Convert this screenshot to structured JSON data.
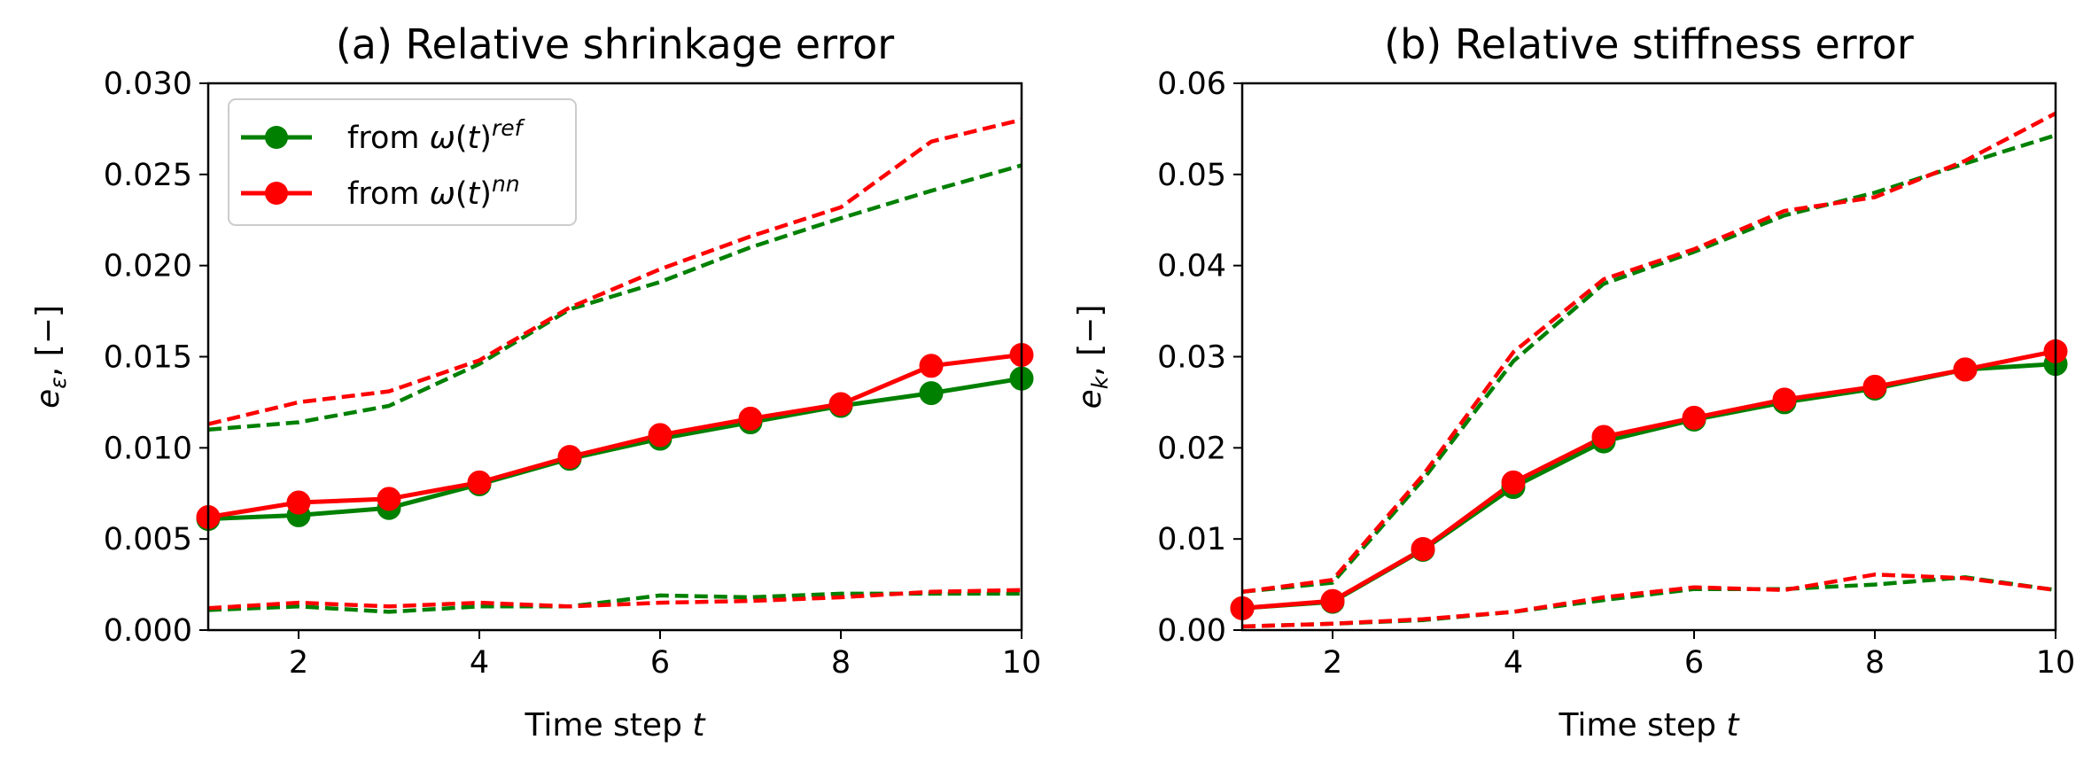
{
  "chart_data": [
    {
      "type": "line",
      "title": "(a) Relative shrinkage error",
      "xlabel": "Time step t",
      "ylabel": "e_ε, [−]",
      "xlim": [
        1,
        10
      ],
      "ylim": [
        0,
        0.03
      ],
      "xticks": [
        2,
        4,
        6,
        8,
        10
      ],
      "yticks": [
        0.0,
        0.005,
        0.01,
        0.015,
        0.02,
        0.025,
        0.03
      ],
      "ytick_labels": [
        "0.000",
        "0.005",
        "0.010",
        "0.015",
        "0.020",
        "0.025",
        "0.030"
      ],
      "grid": false,
      "legend_position": "top-left",
      "x": [
        1,
        2,
        3,
        4,
        5,
        6,
        7,
        8,
        9,
        10
      ],
      "series": [
        {
          "name": "from ω(t)^ref",
          "color": "#008000",
          "style": "solid-marker",
          "values": [
            0.0061,
            0.0063,
            0.0067,
            0.008,
            0.0094,
            0.0105,
            0.0114,
            0.0123,
            0.013,
            0.0138
          ]
        },
        {
          "color": "#008000",
          "style": "dashed",
          "values": [
            0.011,
            0.0114,
            0.0123,
            0.0146,
            0.0176,
            0.0191,
            0.021,
            0.0226,
            0.0241,
            0.0255
          ]
        },
        {
          "color": "#008000",
          "style": "dashed",
          "values": [
            0.0011,
            0.0013,
            0.001,
            0.0013,
            0.0013,
            0.0019,
            0.0018,
            0.002,
            0.002,
            0.002
          ]
        },
        {
          "name": "from ω(t)^nn",
          "color": "#ff0000",
          "style": "solid-marker",
          "values": [
            0.0062,
            0.007,
            0.0072,
            0.0081,
            0.0095,
            0.0107,
            0.0116,
            0.0124,
            0.0145,
            0.0151
          ]
        },
        {
          "color": "#ff0000",
          "style": "dashed",
          "values": [
            0.0113,
            0.0125,
            0.0131,
            0.0148,
            0.0177,
            0.0198,
            0.0216,
            0.0232,
            0.0268,
            0.028
          ]
        },
        {
          "color": "#ff0000",
          "style": "dashed",
          "values": [
            0.0012,
            0.0015,
            0.0013,
            0.0015,
            0.0013,
            0.0015,
            0.0016,
            0.0018,
            0.0021,
            0.0022
          ]
        }
      ],
      "legend": [
        {
          "label": "from ω(t)",
          "sup": "ref",
          "color": "#008000"
        },
        {
          "label": "from ω(t)",
          "sup": "nn",
          "color": "#ff0000"
        }
      ]
    },
    {
      "type": "line",
      "title": "(b) Relative stiffness error",
      "xlabel": "Time step t",
      "ylabel": "e_k, [−]",
      "xlim": [
        1,
        10
      ],
      "ylim": [
        0,
        0.06
      ],
      "xticks": [
        2,
        4,
        6,
        8,
        10
      ],
      "yticks": [
        0.0,
        0.01,
        0.02,
        0.03,
        0.04,
        0.05,
        0.06
      ],
      "ytick_labels": [
        "0.00",
        "0.01",
        "0.02",
        "0.03",
        "0.04",
        "0.05",
        "0.06"
      ],
      "grid": false,
      "x": [
        1,
        2,
        3,
        4,
        5,
        6,
        7,
        8,
        9,
        10
      ],
      "series": [
        {
          "color": "#008000",
          "style": "solid-marker",
          "values": [
            0.0024,
            0.0031,
            0.0088,
            0.0157,
            0.0207,
            0.0231,
            0.025,
            0.0265,
            0.0286,
            0.0292
          ]
        },
        {
          "color": "#008000",
          "style": "dashed",
          "values": [
            0.0042,
            0.0052,
            0.0165,
            0.0295,
            0.038,
            0.0415,
            0.0455,
            0.048,
            0.0512,
            0.0543
          ]
        },
        {
          "color": "#008000",
          "style": "dashed",
          "values": [
            0.0004,
            0.0007,
            0.0011,
            0.002,
            0.0033,
            0.0045,
            0.0045,
            0.005,
            0.0058,
            0.0044
          ]
        },
        {
          "color": "#ff0000",
          "style": "solid-marker",
          "values": [
            0.0024,
            0.0032,
            0.0089,
            0.0162,
            0.0212,
            0.0233,
            0.0253,
            0.0267,
            0.0286,
            0.0306
          ]
        },
        {
          "color": "#ff0000",
          "style": "dashed",
          "values": [
            0.0042,
            0.0055,
            0.017,
            0.0305,
            0.0385,
            0.0418,
            0.046,
            0.0475,
            0.0515,
            0.0567
          ]
        },
        {
          "color": "#ff0000",
          "style": "dashed",
          "values": [
            0.0004,
            0.0007,
            0.0012,
            0.002,
            0.0036,
            0.0047,
            0.0044,
            0.0061,
            0.0057,
            0.0044
          ]
        }
      ]
    }
  ]
}
